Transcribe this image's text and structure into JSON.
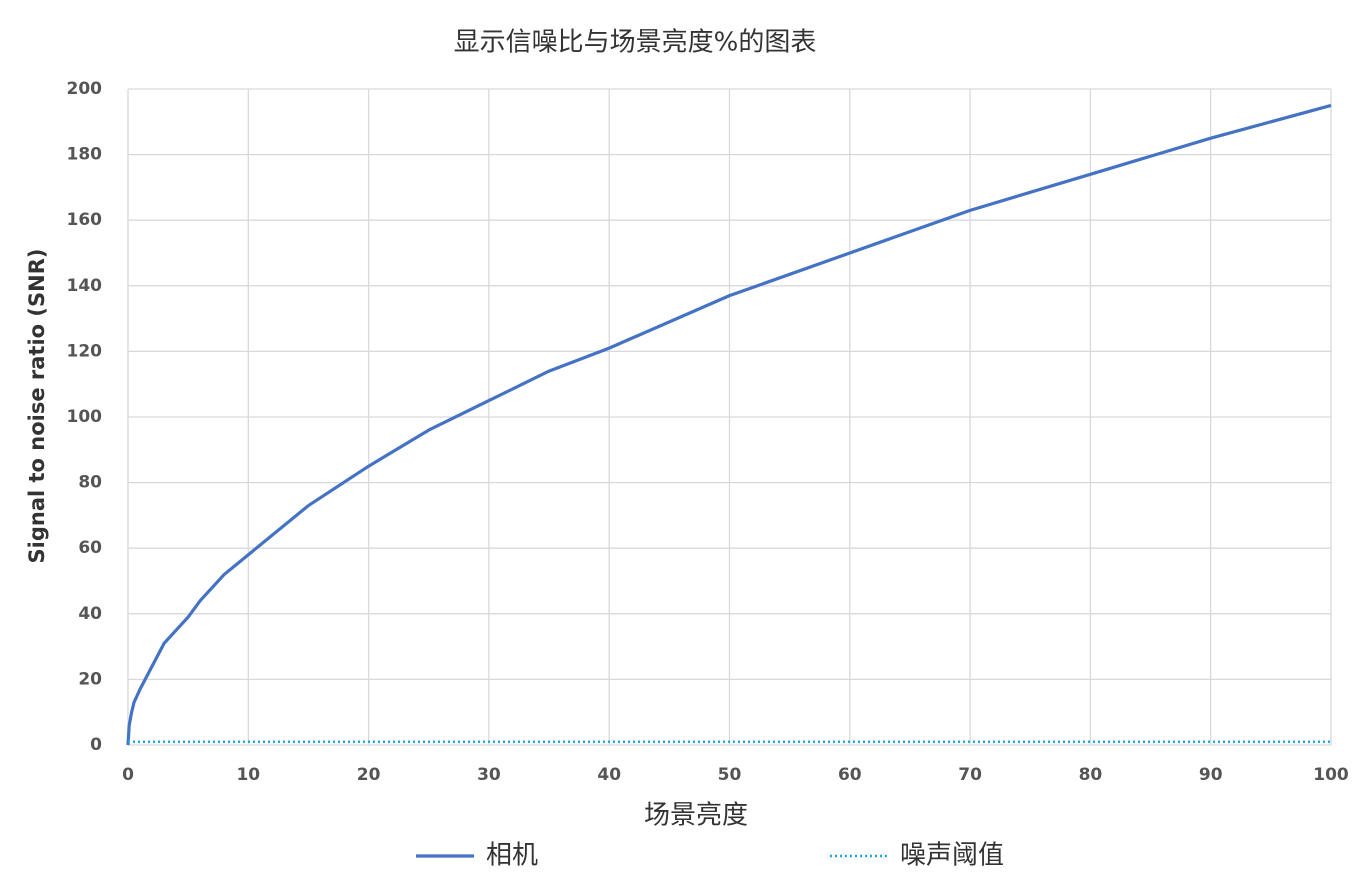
{
  "chart_data": {
    "type": "line",
    "title": "显示信噪比与场景亮度%的图表",
    "x_label": "场景亮度",
    "y_label": "Signal to noise ratio (SNR)",
    "xlim": [
      0,
      100
    ],
    "ylim": [
      0,
      200
    ],
    "xticks": [
      0,
      10,
      20,
      30,
      40,
      50,
      60,
      70,
      80,
      90,
      100
    ],
    "yticks": [
      0,
      20,
      40,
      60,
      80,
      100,
      120,
      140,
      160,
      180,
      200
    ],
    "grid": true,
    "legend": "bottom",
    "series": [
      {
        "name": "相机",
        "color": "#4472c4",
        "style": "solid",
        "x": [
          0,
          0.1,
          0.3,
          0.5,
          1,
          2,
          3,
          4,
          5,
          6,
          7,
          8,
          9,
          10,
          15,
          20,
          25,
          30,
          35,
          40,
          50,
          60,
          70,
          80,
          90,
          100
        ],
        "values": [
          0,
          6,
          10,
          13,
          17,
          24,
          31,
          35,
          39,
          44,
          48,
          52,
          55,
          58,
          73,
          85,
          96,
          105,
          114,
          121,
          137,
          150,
          163,
          174,
          185,
          195
        ]
      },
      {
        "name": "噪声阈值",
        "color": "#1fa8e0",
        "style": "dotted",
        "x": [
          0,
          100
        ],
        "values": [
          1,
          1
        ]
      }
    ]
  }
}
